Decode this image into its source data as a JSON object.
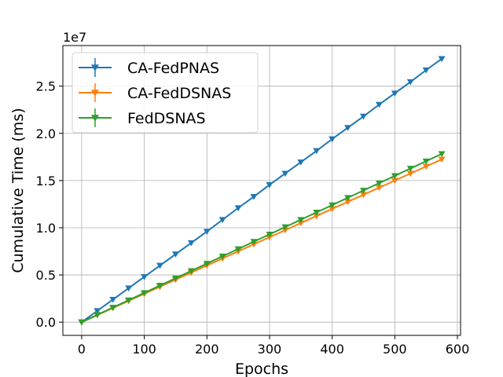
{
  "chart_data": {
    "type": "line",
    "xlabel": "Epochs",
    "ylabel": "Cumulative Time (ms)",
    "y_offset_label": "1e7",
    "xlim": [
      -30,
      605
    ],
    "ylim": [
      -1.4,
      29.3
    ],
    "x_ticks": [
      0,
      100,
      200,
      300,
      400,
      500,
      600
    ],
    "y_ticks": [
      0.0,
      0.5,
      1.0,
      1.5,
      2.0,
      2.5
    ],
    "y_scale_note": "y values in units of 1e7 ms",
    "grid": true,
    "legend_position": "top-left",
    "x": [
      0,
      25,
      50,
      75,
      100,
      125,
      150,
      175,
      200,
      225,
      250,
      275,
      300,
      325,
      350,
      375,
      400,
      425,
      450,
      475,
      500,
      525,
      550,
      575
    ],
    "series": [
      {
        "name": "CA-FedPNAS",
        "color": "#1f77b4",
        "values": [
          0.0,
          0.12,
          0.24,
          0.36,
          0.48,
          0.6,
          0.72,
          0.84,
          0.96,
          1.085,
          1.21,
          1.33,
          1.455,
          1.575,
          1.695,
          1.815,
          1.94,
          2.06,
          2.18,
          2.305,
          2.425,
          2.545,
          2.67,
          2.79
        ]
      },
      {
        "name": "CA-FedDSNAS",
        "color": "#ff7f0e",
        "values": [
          0.0,
          0.075,
          0.15,
          0.225,
          0.3,
          0.375,
          0.45,
          0.525,
          0.6,
          0.675,
          0.75,
          0.825,
          0.9,
          0.975,
          1.05,
          1.125,
          1.2,
          1.275,
          1.35,
          1.425,
          1.5,
          1.575,
          1.65,
          1.725
        ]
      },
      {
        "name": "FedDSNAS",
        "color": "#2ca02c",
        "values": [
          0.0,
          0.078,
          0.155,
          0.233,
          0.31,
          0.388,
          0.465,
          0.543,
          0.62,
          0.698,
          0.775,
          0.853,
          0.93,
          1.008,
          1.085,
          1.163,
          1.24,
          1.318,
          1.395,
          1.473,
          1.55,
          1.628,
          1.705,
          1.783
        ]
      }
    ]
  }
}
